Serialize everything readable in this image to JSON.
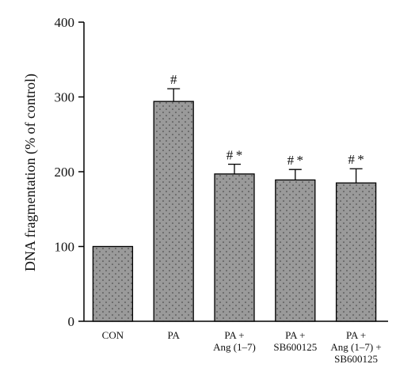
{
  "chart_data": {
    "type": "bar",
    "title": "",
    "xlabel": "",
    "ylabel": "DNA fragmentation (% of control)",
    "ylim": [
      0,
      400
    ],
    "yticks": [
      0,
      100,
      200,
      300,
      400
    ],
    "grid": false,
    "bar_fill": "#9a9a9a",
    "categories": [
      [
        "CON"
      ],
      [
        "PA"
      ],
      [
        "PA +",
        "Ang (1–7)"
      ],
      [
        "PA +",
        "SB600125"
      ],
      [
        "PA +",
        "Ang (1–7) +",
        "SB600125"
      ]
    ],
    "values": [
      100,
      294,
      197,
      189,
      185
    ],
    "errors": [
      0,
      17,
      13,
      14,
      19
    ],
    "annotations": [
      "",
      "#",
      "# *",
      "# *",
      "# *"
    ]
  }
}
